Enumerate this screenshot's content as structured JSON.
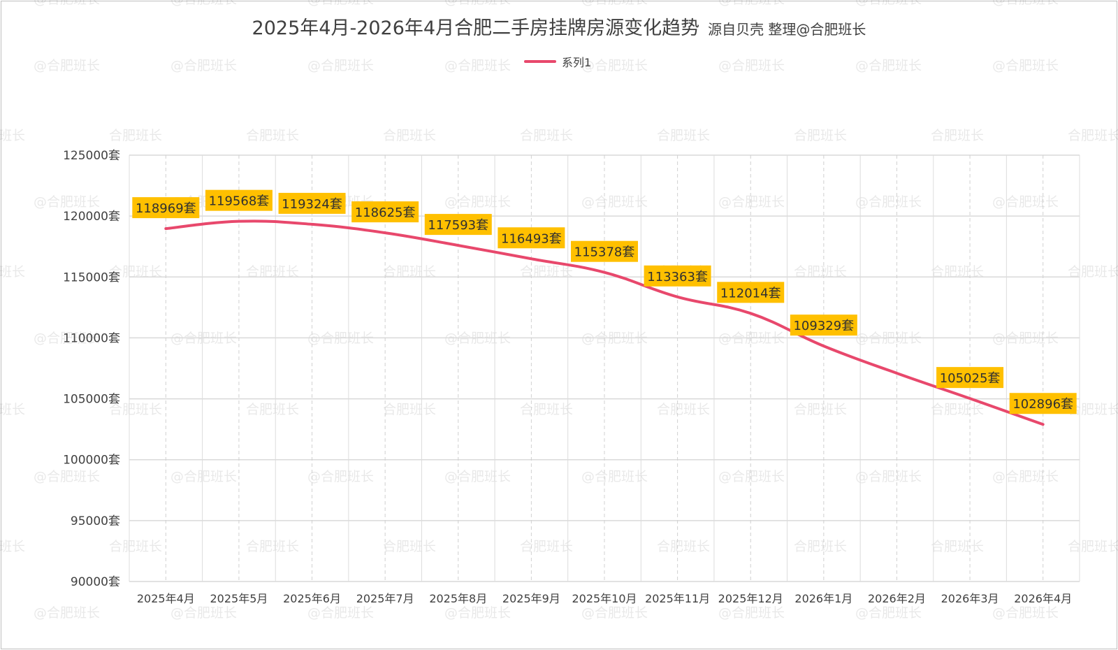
{
  "title": "2025年4月-2026年4月合肥二手房挂牌房源变化趋势",
  "subtitle": "源自贝壳 整理@合肥班长",
  "watermark": "@合肥班长",
  "watermark_short": "合肥班长",
  "colors": {
    "line": "#e8486c",
    "label_bg": "#ffc000",
    "grid": "#d9d9d9",
    "text": "#404040"
  },
  "chart_data": {
    "type": "line",
    "smooth": true,
    "categories": [
      "2025年4月",
      "2025年5月",
      "2025年6月",
      "2025年7月",
      "2025年8月",
      "2025年9月",
      "2025年10月",
      "2025年11月",
      "2025年12月",
      "2026年1月",
      "2026年2月",
      "2026年3月",
      "2026年4月"
    ],
    "series": [
      {
        "name": "系列1",
        "values": [
          118969,
          119568,
          119324,
          118625,
          117593,
          116493,
          115378,
          113363,
          112014,
          109329,
          107100,
          105025,
          102896
        ]
      }
    ],
    "data_labels": [
      "118969套",
      "119568套",
      "119324套",
      "118625套",
      "117593套",
      "116493套",
      "115378套",
      "113363套",
      "112014套",
      "109329套",
      null,
      "105025套",
      "102896套"
    ],
    "ylim": [
      90000,
      125000
    ],
    "yticks": [
      90000,
      95000,
      100000,
      105000,
      110000,
      115000,
      120000,
      125000
    ],
    "ytick_labels": [
      "90000套",
      "95000套",
      "100000套",
      "105000套",
      "110000套",
      "115000套",
      "120000套",
      "125000套"
    ],
    "grid": true,
    "legend": "top-center"
  }
}
